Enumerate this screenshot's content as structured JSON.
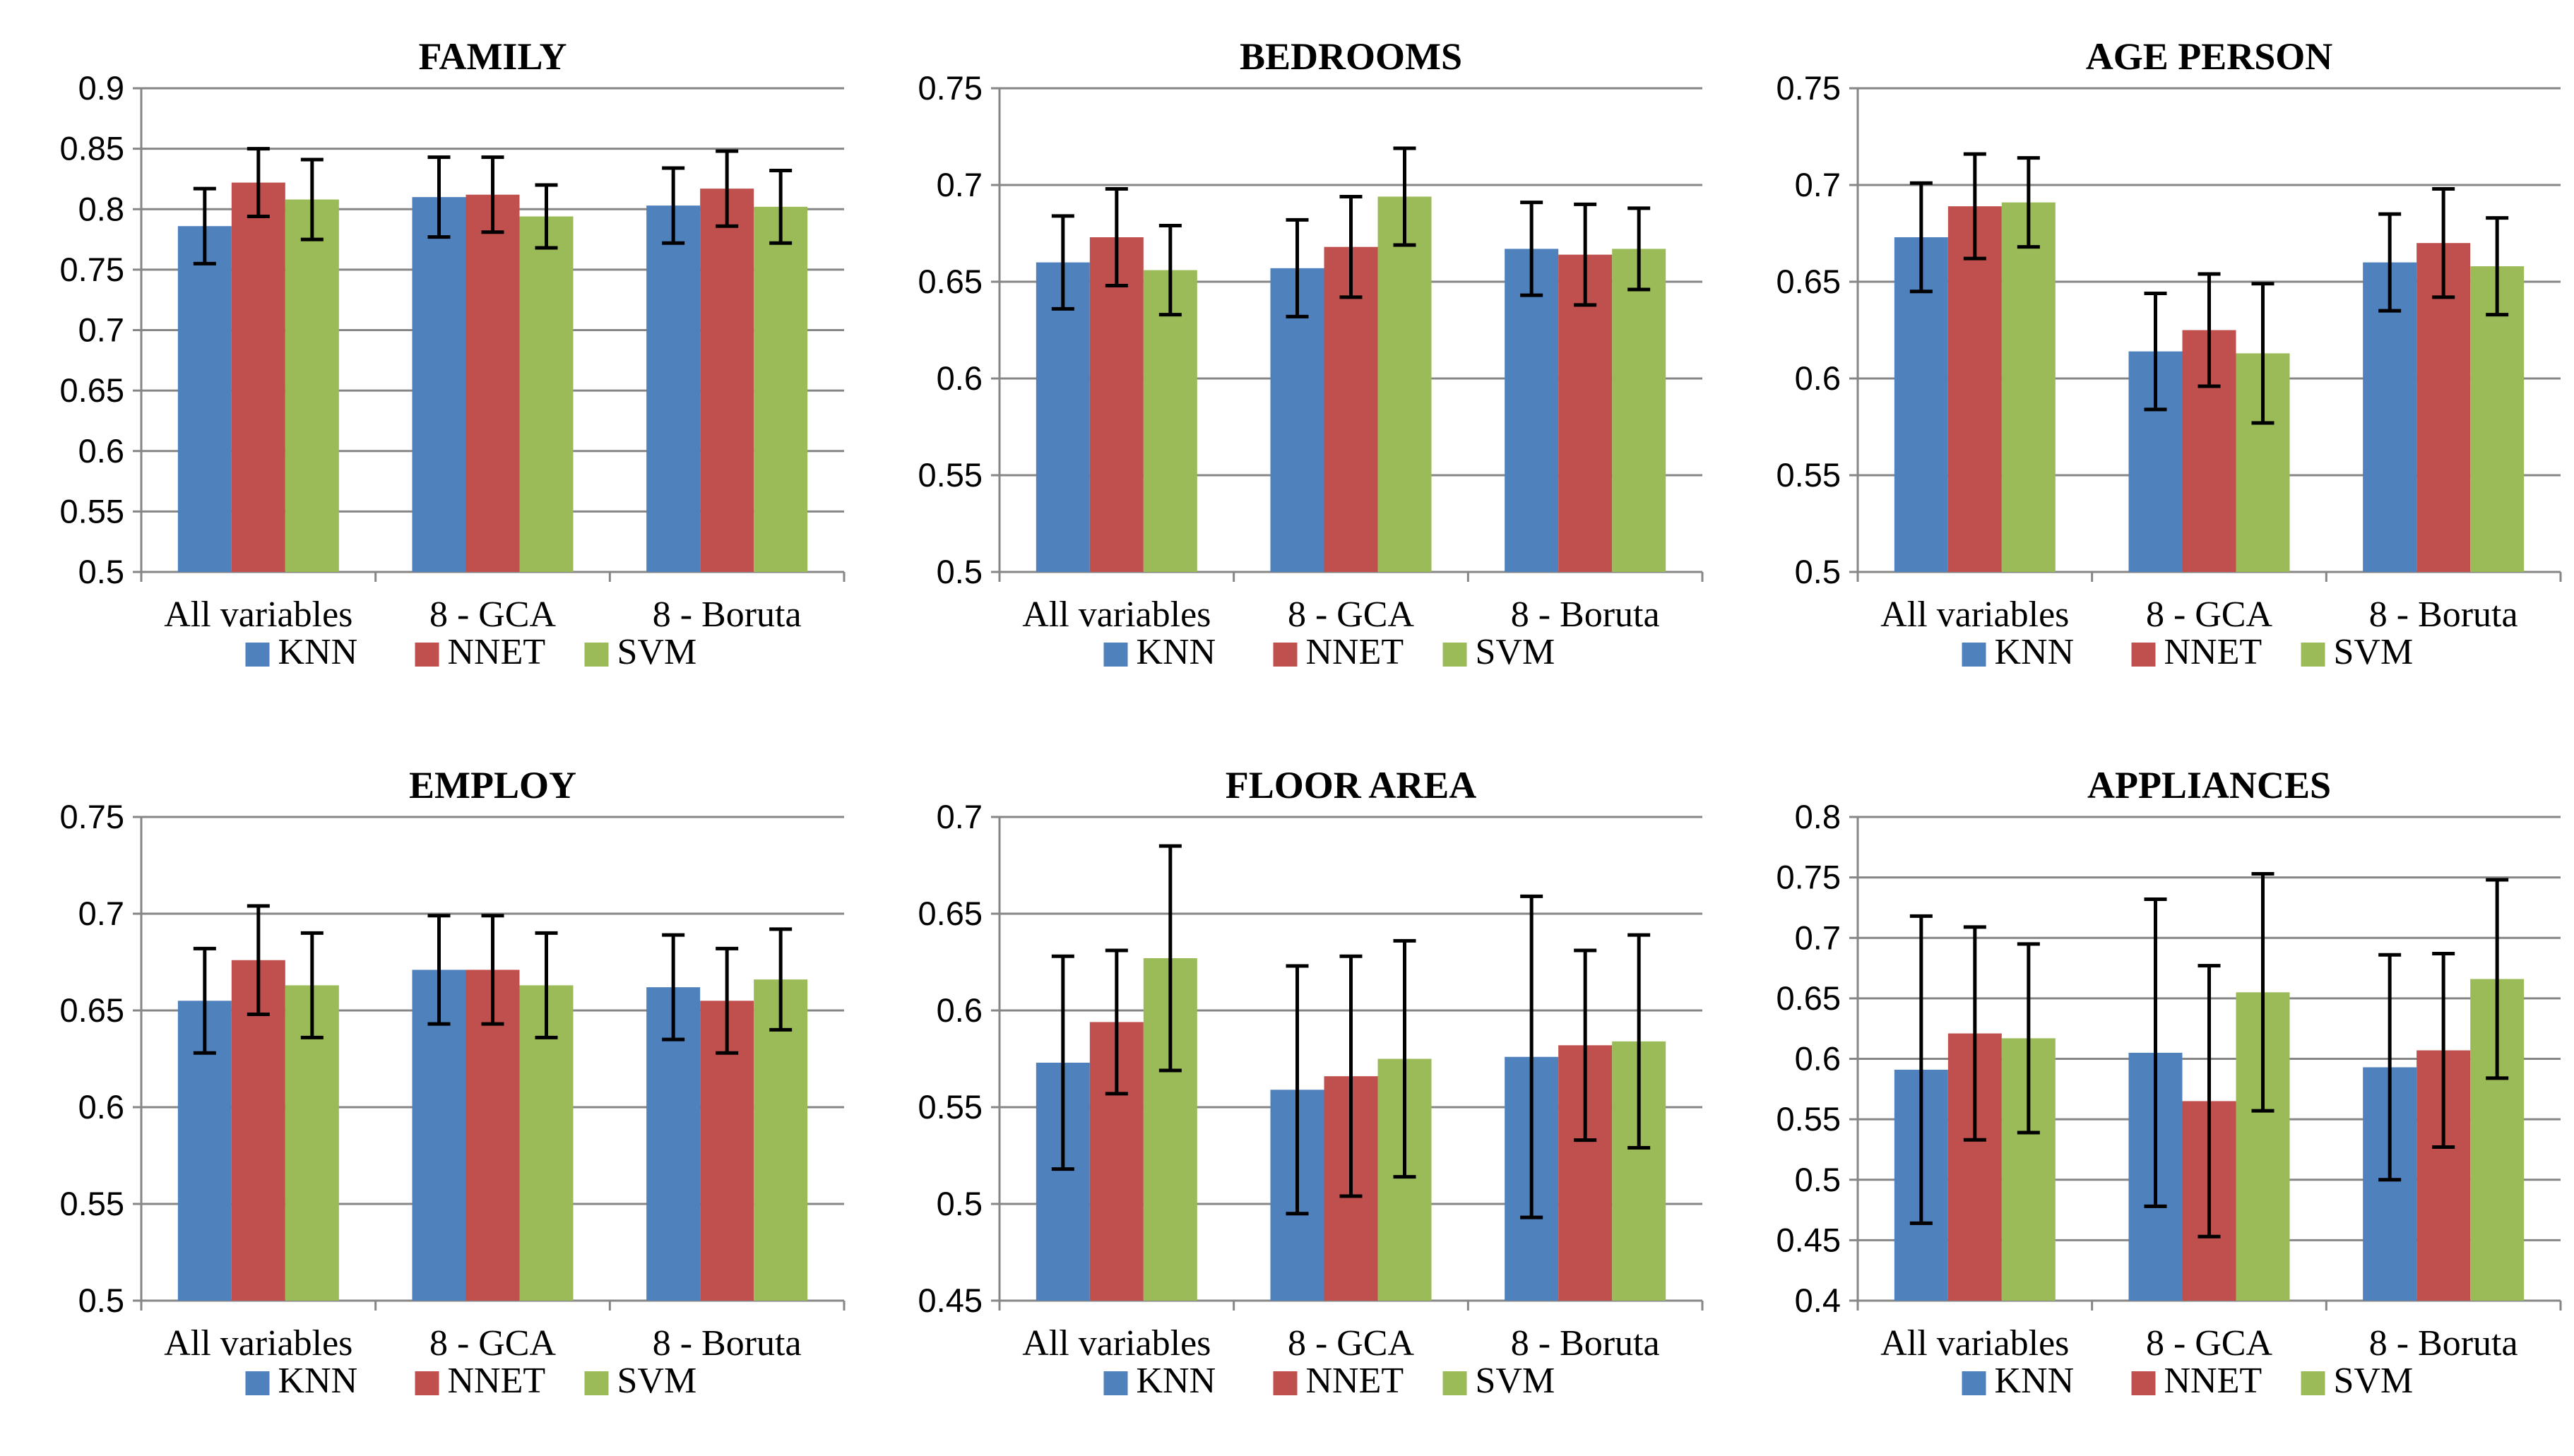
{
  "colors": {
    "KNN": "#4f81bd",
    "NNET": "#c0504d",
    "SVM": "#9bbb59",
    "grid": "#868686",
    "axis": "#868686",
    "error": "#000000"
  },
  "chart_data": [
    {
      "type": "bar",
      "title": "FAMILY",
      "categories": [
        "All variables",
        "8 - GCA",
        "8 - Boruta"
      ],
      "ylim": [
        0.5,
        0.9
      ],
      "yticks": [
        "0.5",
        "0.55",
        "0.6",
        "0.65",
        "0.7",
        "0.75",
        "0.8",
        "0.85",
        "0.9"
      ],
      "grid": true,
      "legend": "bottom",
      "series": [
        {
          "name": "KNN",
          "values": [
            0.786,
            0.81,
            0.803
          ],
          "err": [
            0.031,
            0.033,
            0.031
          ]
        },
        {
          "name": "NNET",
          "values": [
            0.822,
            0.812,
            0.817
          ],
          "err": [
            0.028,
            0.031,
            0.031
          ]
        },
        {
          "name": "SVM",
          "values": [
            0.808,
            0.794,
            0.802
          ],
          "err": [
            0.033,
            0.026,
            0.03
          ]
        }
      ]
    },
    {
      "type": "bar",
      "title": "BEDROOMS",
      "categories": [
        "All variables",
        "8 - GCA",
        "8 - Boruta"
      ],
      "ylim": [
        0.5,
        0.75
      ],
      "yticks": [
        "0.5",
        "0.55",
        "0.6",
        "0.65",
        "0.7",
        "0.75"
      ],
      "grid": true,
      "legend": "bottom",
      "series": [
        {
          "name": "KNN",
          "values": [
            0.66,
            0.657,
            0.667
          ],
          "err": [
            0.024,
            0.025,
            0.024
          ]
        },
        {
          "name": "NNET",
          "values": [
            0.673,
            0.668,
            0.664
          ],
          "err": [
            0.025,
            0.026,
            0.026
          ]
        },
        {
          "name": "SVM",
          "values": [
            0.656,
            0.694,
            0.667
          ],
          "err": [
            0.023,
            0.025,
            0.021
          ]
        }
      ]
    },
    {
      "type": "bar",
      "title": "AGE PERSON",
      "categories": [
        "All variables",
        "8 - GCA",
        "8 - Boruta"
      ],
      "ylim": [
        0.5,
        0.75
      ],
      "yticks": [
        "0.5",
        "0.55",
        "0.6",
        "0.65",
        "0.7",
        "0.75"
      ],
      "grid": true,
      "legend": "bottom",
      "series": [
        {
          "name": "KNN",
          "values": [
            0.673,
            0.614,
            0.66
          ],
          "err": [
            0.028,
            0.03,
            0.025
          ]
        },
        {
          "name": "NNET",
          "values": [
            0.689,
            0.625,
            0.67
          ],
          "err": [
            0.027,
            0.029,
            0.028
          ]
        },
        {
          "name": "SVM",
          "values": [
            0.691,
            0.613,
            0.658
          ],
          "err": [
            0.023,
            0.036,
            0.025
          ]
        }
      ]
    },
    {
      "type": "bar",
      "title": "EMPLOY",
      "categories": [
        "All variables",
        "8 - GCA",
        "8 - Boruta"
      ],
      "ylim": [
        0.5,
        0.75
      ],
      "yticks": [
        "0.5",
        "0.55",
        "0.6",
        "0.65",
        "0.7",
        "0.75"
      ],
      "grid": true,
      "legend": "bottom",
      "series": [
        {
          "name": "KNN",
          "values": [
            0.655,
            0.671,
            0.662
          ],
          "err": [
            0.027,
            0.028,
            0.027
          ]
        },
        {
          "name": "NNET",
          "values": [
            0.676,
            0.671,
            0.655
          ],
          "err": [
            0.028,
            0.028,
            0.027
          ]
        },
        {
          "name": "SVM",
          "values": [
            0.663,
            0.663,
            0.666
          ],
          "err": [
            0.027,
            0.027,
            0.026
          ]
        }
      ]
    },
    {
      "type": "bar",
      "title": "FLOOR AREA",
      "categories": [
        "All variables",
        "8 - GCA",
        "8 - Boruta"
      ],
      "ylim": [
        0.45,
        0.7
      ],
      "yticks": [
        "0.45",
        "0.5",
        "0.55",
        "0.6",
        "0.65",
        "0.7"
      ],
      "grid": true,
      "legend": "bottom",
      "series": [
        {
          "name": "KNN",
          "values": [
            0.573,
            0.559,
            0.576
          ],
          "err": [
            0.055,
            0.064,
            0.083
          ]
        },
        {
          "name": "NNET",
          "values": [
            0.594,
            0.566,
            0.582
          ],
          "err": [
            0.037,
            0.062,
            0.049
          ]
        },
        {
          "name": "SVM",
          "values": [
            0.627,
            0.575,
            0.584
          ],
          "err": [
            0.058,
            0.061,
            0.055
          ]
        }
      ]
    },
    {
      "type": "bar",
      "title": "APPLIANCES",
      "categories": [
        "All variables",
        "8 - GCA",
        "8 - Boruta"
      ],
      "ylim": [
        0.4,
        0.8
      ],
      "yticks": [
        "0.4",
        "0.45",
        "0.5",
        "0.55",
        "0.6",
        "0.65",
        "0.7",
        "0.75",
        "0.8"
      ],
      "grid": true,
      "legend": "bottom",
      "series": [
        {
          "name": "KNN",
          "values": [
            0.591,
            0.605,
            0.593
          ],
          "err": [
            0.127,
            0.127,
            0.093
          ]
        },
        {
          "name": "NNET",
          "values": [
            0.621,
            0.565,
            0.607
          ],
          "err": [
            0.088,
            0.112,
            0.08
          ]
        },
        {
          "name": "SVM",
          "values": [
            0.617,
            0.655,
            0.666
          ],
          "err": [
            0.078,
            0.098,
            0.082
          ]
        }
      ]
    }
  ]
}
